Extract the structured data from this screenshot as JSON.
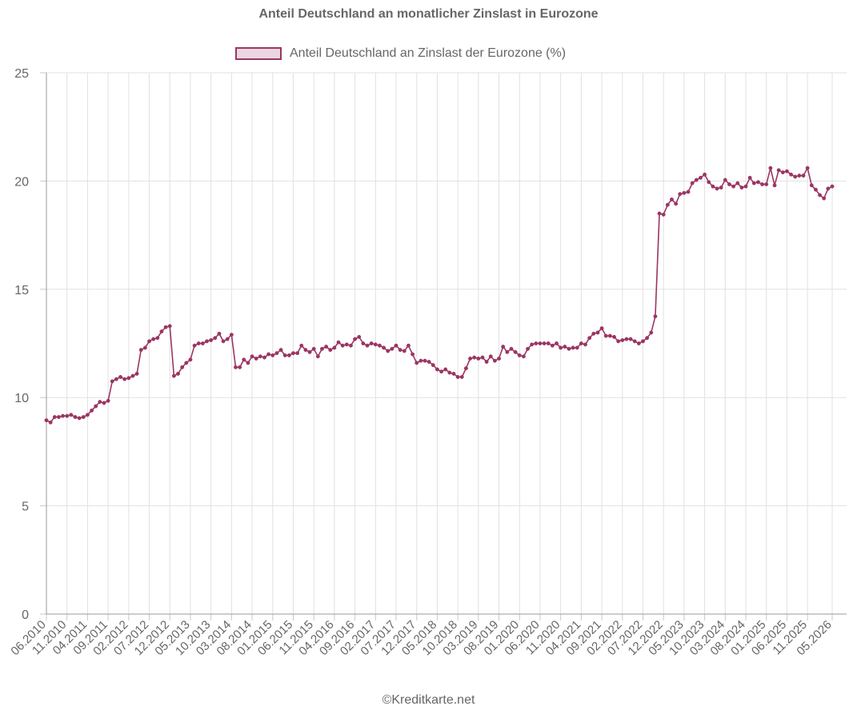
{
  "chart_data": {
    "type": "line",
    "title": "Anteil Deutschland an monatlicher Zinslast in Eurozone",
    "legend": "top",
    "grid": true,
    "ylim": [
      0,
      25
    ],
    "yticks": [
      "0",
      "5",
      "10",
      "15",
      "20",
      "25"
    ],
    "xticks": [
      "06.2010",
      "11.2010",
      "04.2011",
      "09.2011",
      "02.2012",
      "07.2012",
      "12.2012",
      "05.2013",
      "10.2013",
      "03.2014",
      "08.2014",
      "01.2015",
      "06.2015",
      "11.2015",
      "04.2016",
      "09.2016",
      "02.2017",
      "07.2017",
      "12.2017",
      "05.2018",
      "10.2018",
      "03.2019",
      "08.2019",
      "01.2020",
      "06.2020",
      "11.2020",
      "04.2021",
      "09.2021",
      "02.2022",
      "07.2022",
      "12.2022",
      "05.2023",
      "10.2023",
      "03.2024",
      "08.2024",
      "01.2025",
      "06.2025",
      "11.2025",
      "05.2026"
    ],
    "series": [
      {
        "name": "Anteil Deutschland an Zinslast der Eurozone (%)",
        "color": "#9b3563",
        "fill": "rgba(160,50,100,0.2)",
        "start": "06.2010",
        "values": [
          8.95,
          8.85,
          9.1,
          9.1,
          9.15,
          9.15,
          9.2,
          9.1,
          9.05,
          9.1,
          9.2,
          9.4,
          9.6,
          9.8,
          9.75,
          9.85,
          10.75,
          10.85,
          10.95,
          10.85,
          10.9,
          11.0,
          11.1,
          12.2,
          12.3,
          12.6,
          12.7,
          12.75,
          13.05,
          13.25,
          13.3,
          11.0,
          11.1,
          11.4,
          11.6,
          11.75,
          12.4,
          12.5,
          12.5,
          12.6,
          12.65,
          12.75,
          12.95,
          12.6,
          12.7,
          12.9,
          11.4,
          11.4,
          11.75,
          11.6,
          11.9,
          11.8,
          11.9,
          11.85,
          12.0,
          11.95,
          12.05,
          12.2,
          11.95,
          11.95,
          12.05,
          12.05,
          12.4,
          12.2,
          12.1,
          12.25,
          11.9,
          12.25,
          12.35,
          12.2,
          12.3,
          12.55,
          12.4,
          12.45,
          12.4,
          12.7,
          12.8,
          12.5,
          12.4,
          12.5,
          12.45,
          12.4,
          12.3,
          12.15,
          12.25,
          12.4,
          12.2,
          12.15,
          12.4,
          12.0,
          11.6,
          11.7,
          11.7,
          11.65,
          11.5,
          11.3,
          11.2,
          11.3,
          11.15,
          11.1,
          10.95,
          10.95,
          11.35,
          11.8,
          11.85,
          11.8,
          11.85,
          11.65,
          11.9,
          11.7,
          11.8,
          12.35,
          12.1,
          12.25,
          12.1,
          11.95,
          11.9,
          12.25,
          12.45,
          12.5,
          12.5,
          12.5,
          12.5,
          12.4,
          12.5,
          12.3,
          12.35,
          12.25,
          12.3,
          12.3,
          12.5,
          12.45,
          12.75,
          12.95,
          13.0,
          13.2,
          12.85,
          12.85,
          12.8,
          12.6,
          12.65,
          12.7,
          12.7,
          12.6,
          12.5,
          12.6,
          12.75,
          13.0,
          13.75,
          18.5,
          18.45,
          18.9,
          19.15,
          18.95,
          19.4,
          19.45,
          19.5,
          19.9,
          20.05,
          20.15,
          20.3,
          19.95,
          19.75,
          19.65,
          19.7,
          20.05,
          19.85,
          19.75,
          19.9,
          19.7,
          19.75,
          20.15,
          19.9,
          19.95,
          19.85,
          19.85,
          20.6,
          19.8,
          20.5,
          20.4,
          20.45,
          20.3,
          20.2,
          20.25,
          20.25,
          20.6,
          19.8,
          19.6,
          19.35,
          19.2,
          19.65,
          19.75
        ]
      }
    ]
  },
  "footer": "©Kreditkarte.net"
}
